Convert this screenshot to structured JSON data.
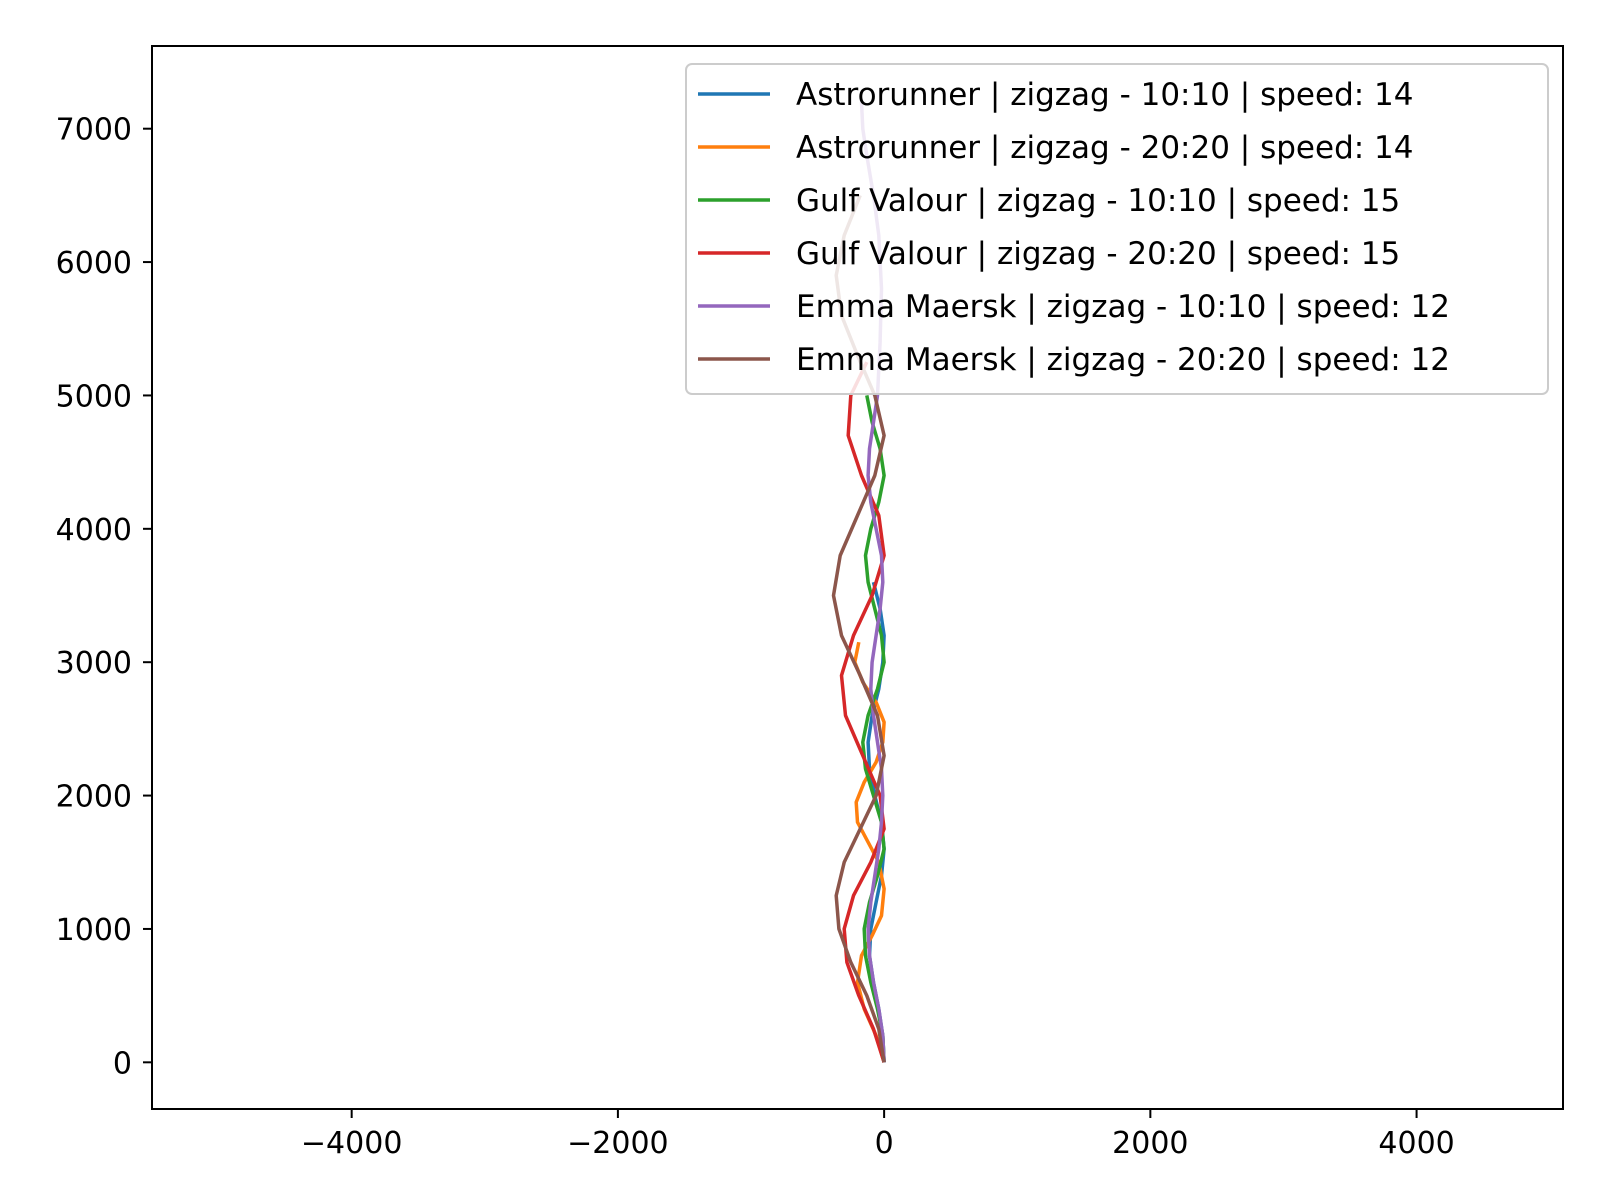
{
  "chart_data": {
    "type": "line",
    "title": "",
    "xlabel": "",
    "ylabel": "",
    "xlim": [
      -5500,
      5100
    ],
    "ylim": [
      -350,
      7620
    ],
    "xticks": [
      -4000,
      -2000,
      0,
      2000,
      4000
    ],
    "xtick_labels": [
      "−4000",
      "−2000",
      "0",
      "2000",
      "4000"
    ],
    "yticks": [
      0,
      1000,
      2000,
      3000,
      4000,
      5000,
      6000,
      7000
    ],
    "ytick_labels": [
      "0",
      "1000",
      "2000",
      "3000",
      "4000",
      "5000",
      "6000",
      "7000"
    ],
    "grid": false,
    "legend_position": "upper right",
    "series": [
      {
        "name": "Astrorunner | zigzag - 10:10 | speed: 14",
        "color": "#1f77b4",
        "x": [
          0,
          -10,
          -40,
          -80,
          -110,
          -100,
          -60,
          -20,
          0,
          -20,
          -70,
          -110,
          -120,
          -90,
          -40,
          -10,
          0,
          -30,
          -80
        ],
        "y": [
          0,
          200,
          400,
          600,
          800,
          1000,
          1200,
          1400,
          1600,
          1800,
          2000,
          2200,
          2400,
          2600,
          2800,
          3000,
          3200,
          3400,
          3600
        ]
      },
      {
        "name": "Astrorunner | zigzag - 20:20 | speed: 14",
        "color": "#ff7f0e",
        "x": [
          0,
          -60,
          -150,
          -200,
          -170,
          -90,
          -20,
          0,
          -40,
          -120,
          -200,
          -210,
          -150,
          -60,
          -10,
          0,
          -60,
          -160,
          -220,
          -190
        ],
        "y": [
          0,
          200,
          400,
          600,
          800,
          950,
          1100,
          1300,
          1500,
          1650,
          1800,
          1950,
          2100,
          2250,
          2400,
          2550,
          2700,
          2850,
          3000,
          3150
        ]
      },
      {
        "name": "Gulf Valour | zigzag - 10:10 | speed: 15",
        "color": "#2ca02c",
        "x": [
          0,
          -10,
          -50,
          -100,
          -140,
          -150,
          -110,
          -50,
          0,
          -20,
          -80,
          -140,
          -160,
          -120,
          -50,
          0,
          -20,
          -70,
          -120,
          -140,
          -100,
          -40,
          0,
          -30,
          -90,
          -130
        ],
        "y": [
          0,
          200,
          400,
          600,
          800,
          1000,
          1200,
          1400,
          1600,
          1800,
          2000,
          2200,
          2400,
          2600,
          2800,
          3000,
          3200,
          3400,
          3600,
          3800,
          4000,
          4200,
          4400,
          4600,
          4800,
          5000
        ]
      },
      {
        "name": "Gulf Valour | zigzag - 20:20 | speed: 15",
        "color": "#d62728",
        "x": [
          0,
          -80,
          -190,
          -280,
          -300,
          -230,
          -100,
          0,
          -30,
          -160,
          -290,
          -320,
          -230,
          -90,
          0,
          -40,
          -170,
          -270,
          -250,
          -130
        ],
        "y": [
          0,
          250,
          500,
          750,
          1000,
          1250,
          1500,
          1750,
          2000,
          2300,
          2600,
          2900,
          3200,
          3500,
          3800,
          4100,
          4400,
          4700,
          5000,
          5250
        ]
      },
      {
        "name": "Emma Maersk | zigzag - 10:10 | speed: 12",
        "color": "#9467bd",
        "x": [
          0,
          -10,
          -40,
          -80,
          -110,
          -120,
          -100,
          -70,
          -40,
          -20,
          -10,
          -20,
          -50,
          -80,
          -100,
          -90,
          -60,
          -30,
          -10,
          -20,
          -60,
          -100,
          -120,
          -110,
          -80,
          -50,
          -30,
          -20,
          -40,
          -80,
          -130,
          -160,
          -170
        ],
        "y": [
          0,
          200,
          400,
          600,
          800,
          1000,
          1200,
          1400,
          1600,
          1800,
          2000,
          2200,
          2400,
          2600,
          2800,
          3000,
          3200,
          3400,
          3600,
          3800,
          4000,
          4200,
          4400,
          4600,
          4800,
          5000,
          5400,
          5800,
          6200,
          6500,
          6800,
          7000,
          7200
        ]
      },
      {
        "name": "Emma Maersk | zigzag - 20:20 | speed: 12",
        "color": "#8c564b",
        "x": [
          0,
          -40,
          -130,
          -250,
          -340,
          -360,
          -300,
          -180,
          -60,
          0,
          -50,
          -180,
          -320,
          -380,
          -330,
          -200,
          -70,
          0,
          -70,
          -200,
          -320,
          -360,
          -300,
          -180
        ],
        "y": [
          0,
          250,
          500,
          750,
          1000,
          1250,
          1500,
          1750,
          2000,
          2300,
          2600,
          2900,
          3200,
          3500,
          3800,
          4100,
          4400,
          4700,
          5000,
          5300,
          5600,
          5900,
          6200,
          6500
        ]
      }
    ]
  }
}
